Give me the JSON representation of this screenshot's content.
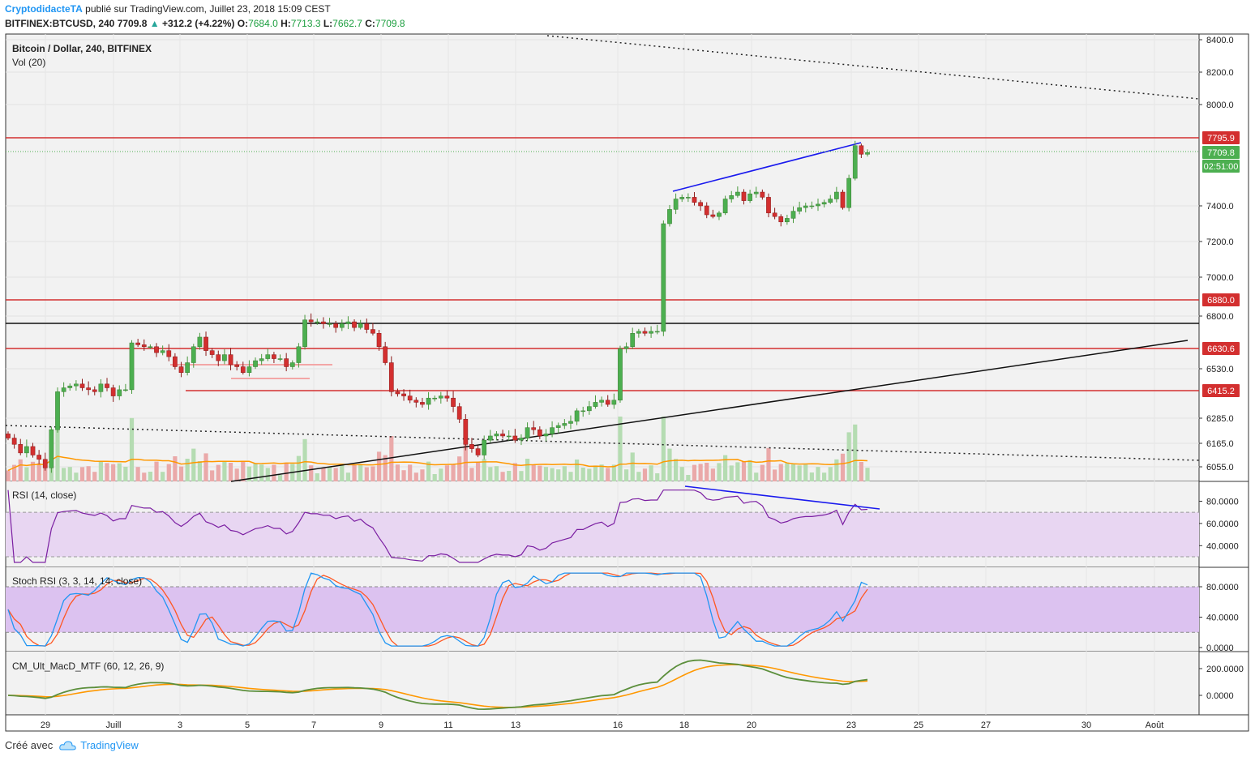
{
  "header": {
    "brand": "CryptodidacteTA",
    "published": "publié sur TradingView.com, Juillet 23, 2018 15:09 CEST",
    "symbol": "BITFINEX:BTCUSD, 240",
    "last": "7709.8",
    "change": "+312.2 (+4.22%)",
    "o_label": "O:",
    "o": "7684.0",
    "h_label": "H:",
    "h": "7713.3",
    "l_label": "L:",
    "l": "7662.7",
    "c_label": "C:",
    "c": "7709.8"
  },
  "footer": {
    "created_with": "Créé avec",
    "tv": "TradingView"
  },
  "colors": {
    "up": "#4caf50",
    "down": "#d32f2f",
    "level": "#d32f2f",
    "trend_blue": "#1a1aee",
    "rsi": "#7b1fa2",
    "stoch_k": "#2196f3",
    "stoch_d": "#ff5722",
    "macd": "#5c8f3c",
    "signal": "#ff9800",
    "vol_ma": "#ff9800"
  },
  "chart_data": [
    {
      "type": "candlestick",
      "title": "Bitcoin / Dollar, 240, BITFINEX",
      "subtitle": "Vol (20)",
      "y_ticks": [
        "8400.0",
        "8200.0",
        "8000.0",
        "7400.0",
        "7200.0",
        "7000.0",
        "6800.0",
        "6530.0",
        "6285.0",
        "6165.0",
        "6055.0"
      ],
      "price_labels": [
        {
          "text": "7795.9",
          "kind": "level"
        },
        {
          "text": "7709.8",
          "kind": "last"
        },
        {
          "text": "02:51:00",
          "kind": "countdown"
        },
        {
          "text": "6880.0",
          "kind": "level"
        },
        {
          "text": "6630.6",
          "kind": "level"
        },
        {
          "text": "6415.2",
          "kind": "level"
        }
      ],
      "x_labels": [
        "29",
        "Juill",
        "3",
        "5",
        "7",
        "9",
        "11",
        "13",
        "16",
        "18",
        "20",
        "23",
        "25",
        "27",
        "30",
        "Août"
      ],
      "horizontal_levels": [
        7795.9,
        6880.0,
        6630.6,
        6415.2
      ],
      "closes": [
        6190,
        6160,
        6120,
        6150,
        6110,
        6090,
        6050,
        6230,
        6410,
        6430,
        6440,
        6450,
        6430,
        6420,
        6410,
        6450,
        6430,
        6390,
        6420,
        6420,
        6660,
        6650,
        6640,
        6640,
        6610,
        6620,
        6590,
        6540,
        6510,
        6560,
        6640,
        6690,
        6620,
        6600,
        6570,
        6600,
        6550,
        6540,
        6510,
        6540,
        6570,
        6580,
        6600,
        6580,
        6580,
        6540,
        6560,
        6640,
        6780,
        6770,
        6770,
        6760,
        6760,
        6740,
        6760,
        6770,
        6740,
        6760,
        6730,
        6710,
        6640,
        6560,
        6410,
        6400,
        6390,
        6370,
        6360,
        6350,
        6380,
        6380,
        6390,
        6380,
        6340,
        6280,
        6160,
        6140,
        6110,
        6180,
        6200,
        6210,
        6200,
        6200,
        6180,
        6190,
        6240,
        6230,
        6200,
        6210,
        6240,
        6250,
        6260,
        6270,
        6320,
        6320,
        6340,
        6360,
        6370,
        6350,
        6370,
        6630,
        6640,
        6710,
        6720,
        6710,
        6720,
        6720,
        7300,
        7380,
        7440,
        7450,
        7450,
        7420,
        7400,
        7350,
        7340,
        7360,
        7440,
        7460,
        7480,
        7430,
        7470,
        7480,
        7450,
        7360,
        7340,
        7310,
        7330,
        7370,
        7390,
        7400,
        7400,
        7410,
        7420,
        7440,
        7480,
        7390,
        7560,
        7750,
        7700,
        7710
      ],
      "rsi": {
        "title": "RSI (14, close)",
        "ticks": [
          "80.0000",
          "60.0000",
          "40.0000"
        ],
        "band": [
          30,
          70
        ]
      },
      "stoch": {
        "title": "Stoch RSI (3, 3, 14, 14, close)",
        "ticks": [
          "80.0000",
          "40.0000",
          "0.0000"
        ],
        "band": [
          20,
          80
        ]
      },
      "macd": {
        "title": "CM_Ult_MacD_MTF (60, 12, 26, 9)",
        "ticks": [
          "200.0000",
          "0.0000"
        ]
      }
    }
  ]
}
